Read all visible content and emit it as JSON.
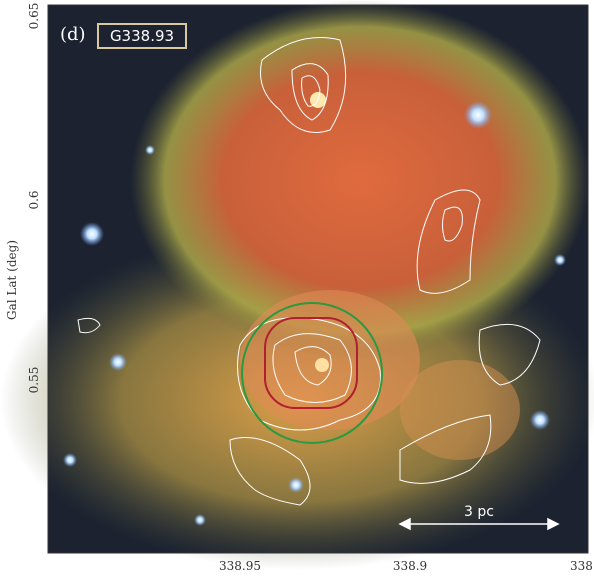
{
  "panel": {
    "label": "(d)",
    "name": "G338.93"
  },
  "y_axis": {
    "label": "Gal Lat (deg)",
    "ticks": [
      "0.65",
      "0.6",
      "0.55"
    ]
  },
  "x_axis": {
    "ticks": [
      "338.95",
      "338.9",
      "338."
    ]
  },
  "scale_bar": "3 pc"
}
